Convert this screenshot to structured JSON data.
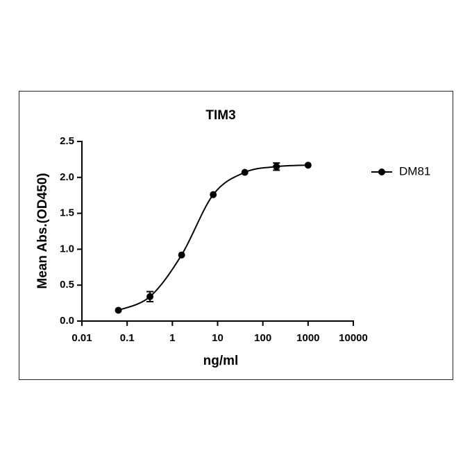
{
  "chart_data": {
    "type": "line",
    "title": "TIM3",
    "x_label": "ng/ml",
    "y_label": "Mean Abs.(OD450)",
    "xscale": "log",
    "x": [
      0.064,
      0.32,
      1.6,
      8,
      40,
      200,
      1000
    ],
    "series": [
      {
        "name": "DM81",
        "color": "#000000",
        "values": [
          0.15,
          0.34,
          0.92,
          1.76,
          2.07,
          2.15,
          2.17
        ],
        "errors": [
          null,
          0.07,
          null,
          null,
          null,
          0.05,
          null
        ]
      }
    ],
    "xlim": [
      0.01,
      10000
    ],
    "xticks": [
      0.01,
      0.1,
      1,
      10,
      100,
      1000,
      10000
    ],
    "ylim": [
      0,
      2.5
    ],
    "yticks": [
      {
        "value": 0,
        "label": "0.0"
      },
      0.5,
      {
        "value": 1,
        "label": "1.0"
      },
      1.5,
      {
        "value": 2,
        "label": "2.0"
      },
      2.5
    ],
    "grid": false,
    "legend": "upper right"
  }
}
